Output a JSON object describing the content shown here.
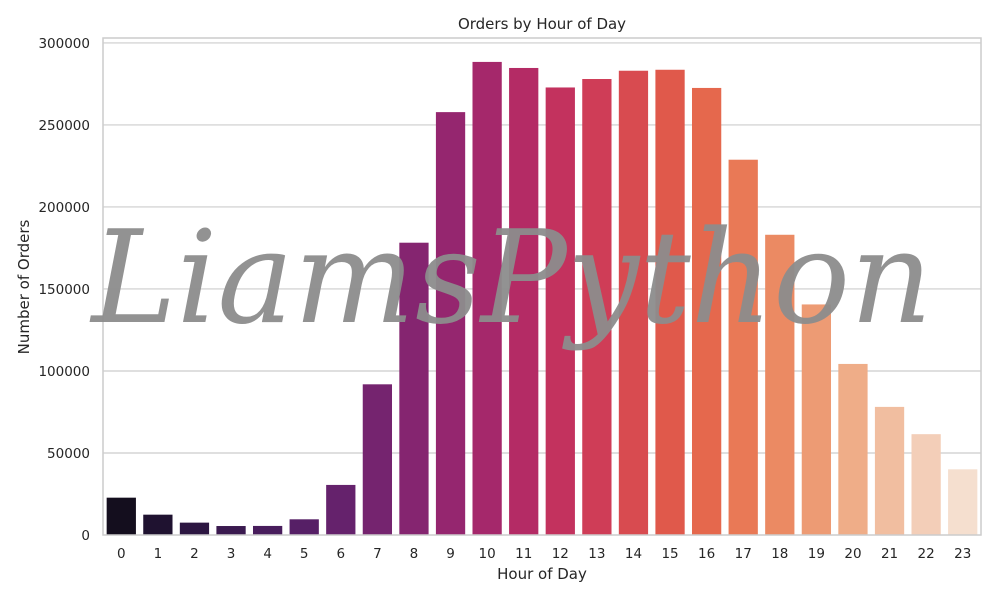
{
  "watermark": "LiamsPython",
  "chart_data": {
    "type": "bar",
    "title": "Orders by Hour of Day",
    "xlabel": "Hour of Day",
    "ylabel": "Number of Orders",
    "categories": [
      "0",
      "1",
      "2",
      "3",
      "4",
      "5",
      "6",
      "7",
      "8",
      "9",
      "10",
      "11",
      "12",
      "13",
      "14",
      "15",
      "16",
      "17",
      "18",
      "19",
      "20",
      "21",
      "22",
      "23"
    ],
    "values": [
      22758,
      12398,
      7539,
      5474,
      5527,
      9569,
      30529,
      91868,
      178201,
      257812,
      288418,
      284728,
      272841,
      277999,
      283042,
      283639,
      272553,
      228795,
      183039,
      140569,
      104292,
      78109,
      61468,
      40043
    ],
    "ylim": [
      0,
      303000
    ],
    "yticks": [
      0,
      50000,
      100000,
      150000,
      200000,
      250000,
      300000
    ],
    "ytick_labels": [
      "0",
      "50000",
      "100000",
      "150000",
      "200000",
      "250000",
      "300000"
    ],
    "grid": "y",
    "palette": "rocket",
    "colors": [
      "#140e1e",
      "#1f1230",
      "#2c1641",
      "#3a1a4f",
      "#481d5c",
      "#561f66",
      "#65226c",
      "#75246f",
      "#852570",
      "#95266f",
      "#a5286b",
      "#b42b65",
      "#c3325e",
      "#cf3d57",
      "#d84b50",
      "#e0594b",
      "#e5684d",
      "#e97956",
      "#eb8a63",
      "#ed9b74",
      "#efad88",
      "#f1bea0",
      "#f3ceb8",
      "#f5dfcf"
    ]
  }
}
